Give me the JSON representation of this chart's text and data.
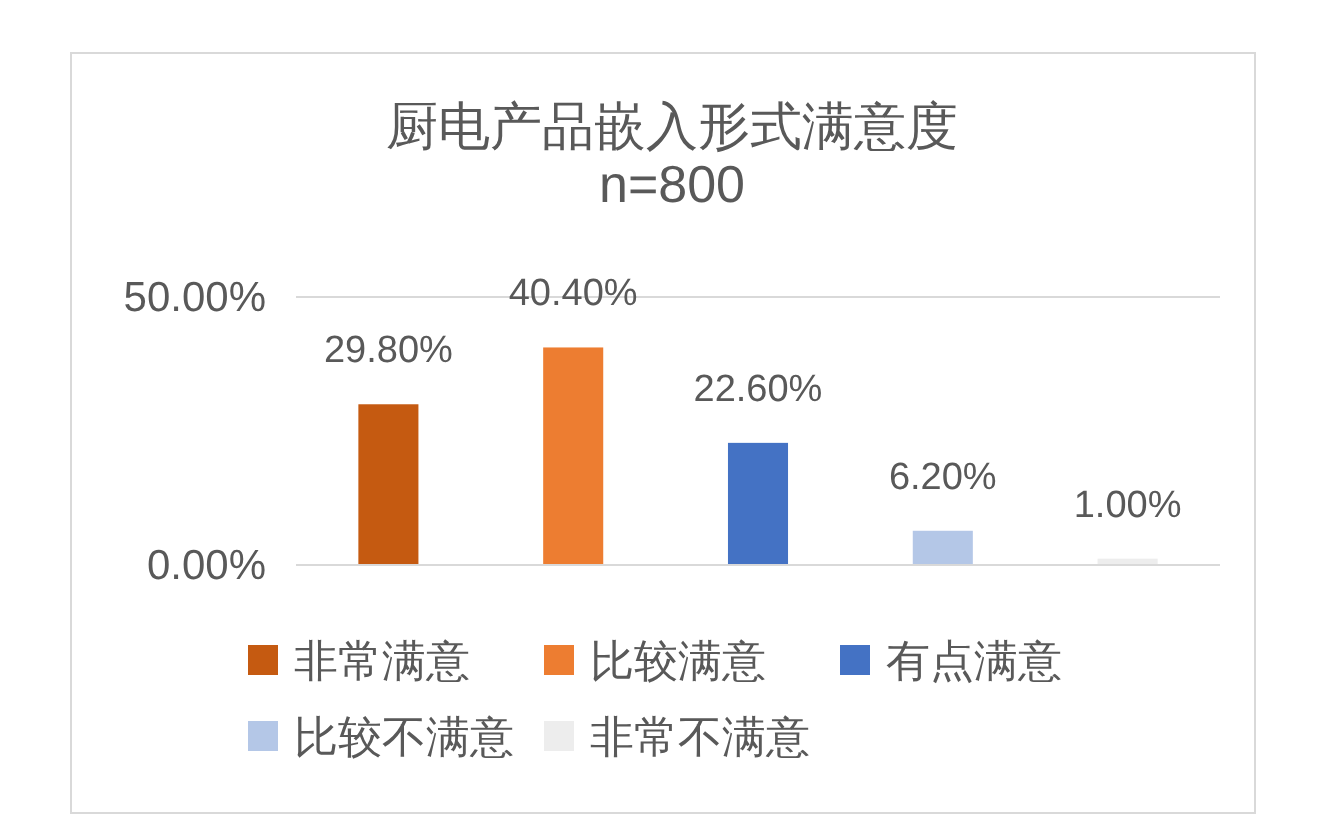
{
  "chart_data": {
    "type": "bar",
    "title": "厨电产品嵌入形式满意度",
    "subtitle": "n=800",
    "categories": [
      null
    ],
    "series": [
      {
        "name": "非常满意",
        "color": "#c55a11",
        "values": [
          29.8
        ],
        "value_labels": [
          "29.80%"
        ]
      },
      {
        "name": "比较满意",
        "color": "#ed7d31",
        "values": [
          40.4
        ],
        "value_labels": [
          "40.40%"
        ]
      },
      {
        "name": "有点满意",
        "color": "#4472c4",
        "values": [
          22.6
        ],
        "value_labels": [
          "22.60%"
        ]
      },
      {
        "name": "比较不满意",
        "color": "#b4c7e7",
        "values": [
          6.2
        ],
        "value_labels": [
          "6.20%"
        ]
      },
      {
        "name": "非常不满意",
        "color": "#ededed",
        "values": [
          1.0
        ],
        "value_labels": [
          "1.00%"
        ]
      }
    ],
    "ylim": [
      0,
      50
    ],
    "yticks": [
      {
        "value": 0,
        "label": "0.00%"
      },
      {
        "value": 50,
        "label": "50.00%"
      }
    ],
    "grid": "y",
    "legend": "bottom"
  }
}
